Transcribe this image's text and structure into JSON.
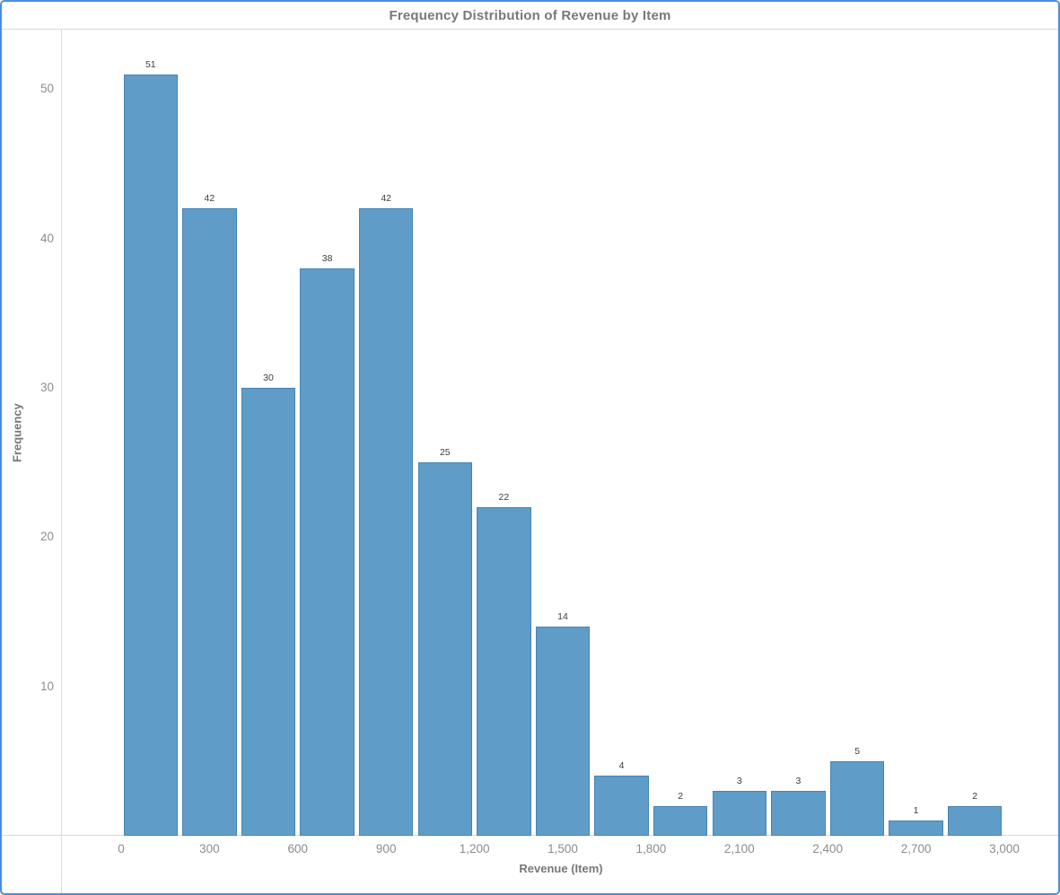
{
  "title": "Frequency Distribution of Revenue by Item",
  "chart_data": {
    "type": "bar",
    "subtype": "histogram",
    "title": "Frequency Distribution of Revenue by Item",
    "xlabel": "Revenue (Item)",
    "ylabel": "Frequency",
    "bin_start": 0,
    "bin_width": 200,
    "bin_edges": [
      0,
      200,
      400,
      600,
      800,
      1000,
      1200,
      1400,
      1600,
      1800,
      2000,
      2200,
      2400,
      2600,
      2800,
      3000
    ],
    "values": [
      51,
      42,
      30,
      38,
      42,
      25,
      22,
      14,
      4,
      2,
      3,
      3,
      5,
      1,
      2
    ],
    "bar_value_labels": [
      "51",
      "42",
      "30",
      "38",
      "42",
      "25",
      "22",
      "14",
      "4",
      "2",
      "3",
      "3",
      "5",
      "1",
      "2"
    ],
    "x_tick_values": [
      0,
      300,
      600,
      900,
      1200,
      1500,
      1800,
      2100,
      2400,
      2700,
      3000
    ],
    "x_tick_labels": [
      "0",
      "300",
      "600",
      "900",
      "1,200",
      "1,500",
      "1,800",
      "2,100",
      "2,400",
      "2,700",
      "3,000"
    ],
    "y_tick_values": [
      10,
      20,
      30,
      40,
      50
    ],
    "y_tick_labels": [
      "10",
      "20",
      "30",
      "40",
      "50"
    ],
    "xlim": [
      0,
      3000
    ],
    "ylim": [
      0,
      54
    ],
    "grid": false,
    "legend": "none",
    "bar_color": "#609cc8",
    "bar_border_color": "#4685b5"
  },
  "colors": {
    "frame_border": "#4a8edd",
    "axis_line": "#d9d9d9",
    "title_text": "#787878",
    "axis_label_text": "#787878",
    "tick_text": "#8c8c8c",
    "value_label_text": "#3c3c3c",
    "plot_background": "#ffffff"
  }
}
